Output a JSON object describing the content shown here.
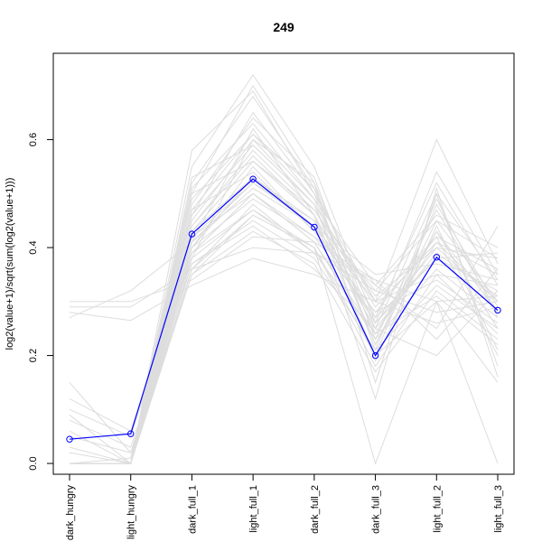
{
  "chart_data": {
    "type": "line",
    "title": "249",
    "xlabel": "",
    "ylabel": "log2(value+1)/sqrt(sum(log2(value+1)))",
    "categories": [
      "dark_hungry",
      "light_hungry",
      "dark_full_1",
      "light_full_1",
      "dark_full_2",
      "dark_full_3",
      "light_full_2",
      "light_full_3"
    ],
    "ylim": [
      -0.02,
      0.76
    ],
    "yticks": [
      0.0,
      0.2,
      0.4,
      0.6
    ],
    "ytick_labels": [
      "0.0",
      "0.2",
      "0.4",
      "0.6"
    ],
    "grid": false,
    "highlight_color": "#0000ff",
    "background_color": "#dddddd",
    "series": [
      {
        "values": [
          0.045,
          0.055,
          0.425,
          0.527,
          0.438,
          0.2,
          0.382,
          0.284
        ],
        "color": "#0000ff",
        "markers": true
      }
    ],
    "background_series": [
      [
        0.0,
        0.0,
        0.35,
        0.46,
        0.4,
        0.0,
        0.3,
        0.0
      ],
      [
        0.0,
        0.0,
        0.42,
        0.52,
        0.44,
        0.26,
        0.38,
        0.32
      ],
      [
        0.0,
        0.0,
        0.38,
        0.6,
        0.48,
        0.3,
        0.42,
        0.36
      ],
      [
        0.0,
        0.0,
        0.46,
        0.65,
        0.5,
        0.22,
        0.45,
        0.3
      ],
      [
        0.0,
        0.0,
        0.5,
        0.7,
        0.52,
        0.25,
        0.5,
        0.34
      ],
      [
        0.0,
        0.0,
        0.4,
        0.55,
        0.43,
        0.28,
        0.34,
        0.26
      ],
      [
        0.0,
        0.0,
        0.36,
        0.48,
        0.39,
        0.24,
        0.31,
        0.22
      ],
      [
        0.0,
        0.0,
        0.44,
        0.58,
        0.47,
        0.31,
        0.4,
        0.38
      ],
      [
        0.0,
        0.0,
        0.41,
        0.62,
        0.46,
        0.2,
        0.48,
        0.29
      ],
      [
        0.0,
        0.0,
        0.52,
        0.68,
        0.51,
        0.27,
        0.52,
        0.33
      ],
      [
        0.05,
        0.02,
        0.39,
        0.5,
        0.41,
        0.23,
        0.36,
        0.27
      ],
      [
        0.08,
        0.03,
        0.37,
        0.45,
        0.38,
        0.21,
        0.33,
        0.25
      ],
      [
        0.1,
        0.05,
        0.4,
        0.53,
        0.45,
        0.25,
        0.39,
        0.31
      ],
      [
        0.03,
        0.0,
        0.43,
        0.56,
        0.47,
        0.29,
        0.41,
        0.35
      ],
      [
        0.12,
        0.06,
        0.38,
        0.47,
        0.4,
        0.18,
        0.35,
        0.24
      ],
      [
        0.15,
        0.02,
        0.35,
        0.43,
        0.37,
        0.17,
        0.32,
        0.23
      ],
      [
        0.0,
        0.01,
        0.47,
        0.61,
        0.49,
        0.33,
        0.46,
        0.4
      ],
      [
        0.0,
        0.0,
        0.48,
        0.64,
        0.53,
        0.23,
        0.47,
        0.28
      ],
      [
        0.0,
        0.0,
        0.55,
        0.72,
        0.55,
        0.26,
        0.54,
        0.35
      ],
      [
        0.0,
        0.0,
        0.58,
        0.69,
        0.5,
        0.3,
        0.6,
        0.37
      ],
      [
        0.29,
        0.29,
        0.36,
        0.4,
        0.39,
        0.32,
        0.28,
        0.3
      ],
      [
        0.28,
        0.265,
        0.33,
        0.38,
        0.35,
        0.3,
        0.26,
        0.29
      ],
      [
        0.3,
        0.3,
        0.34,
        0.42,
        0.41,
        0.34,
        0.3,
        0.31
      ],
      [
        0.27,
        0.32,
        0.41,
        0.51,
        0.44,
        0.35,
        0.37,
        0.34
      ],
      [
        0.0,
        0.0,
        0.45,
        0.6,
        0.52,
        0.15,
        0.5,
        0.18
      ],
      [
        0.0,
        0.0,
        0.5,
        0.56,
        0.46,
        0.12,
        0.51,
        0.16
      ],
      [
        0.0,
        0.0,
        0.53,
        0.59,
        0.48,
        0.19,
        0.44,
        0.21
      ],
      [
        0.0,
        0.0,
        0.42,
        0.5,
        0.42,
        0.33,
        0.25,
        0.44
      ],
      [
        0.0,
        0.0,
        0.39,
        0.47,
        0.39,
        0.34,
        0.23,
        0.36
      ],
      [
        0.0,
        0.0,
        0.51,
        0.63,
        0.49,
        0.24,
        0.43,
        0.25
      ],
      [
        0.06,
        0.0,
        0.44,
        0.57,
        0.46,
        0.26,
        0.4,
        0.3
      ],
      [
        0.0,
        0.0,
        0.47,
        0.54,
        0.43,
        0.28,
        0.42,
        0.2
      ],
      [
        0.0,
        0.0,
        0.49,
        0.61,
        0.51,
        0.21,
        0.49,
        0.27
      ],
      [
        0.0,
        0.0,
        0.37,
        0.44,
        0.36,
        0.25,
        0.2,
        0.32
      ],
      [
        0.0,
        0.0,
        0.4,
        0.49,
        0.42,
        0.27,
        0.38,
        0.39
      ],
      [
        0.02,
        0.0,
        0.43,
        0.53,
        0.44,
        0.3,
        0.35,
        0.33
      ],
      [
        0.09,
        0.0,
        0.46,
        0.59,
        0.48,
        0.22,
        0.43,
        0.28
      ],
      [
        0.0,
        0.0,
        0.36,
        0.46,
        0.4,
        0.2,
        0.3,
        0.15
      ],
      [
        0.0,
        0.0,
        0.41,
        0.52,
        0.45,
        0.32,
        0.45,
        0.38
      ],
      [
        0.0,
        0.0,
        0.39,
        0.5,
        0.41,
        0.24,
        0.41,
        0.3
      ]
    ]
  }
}
